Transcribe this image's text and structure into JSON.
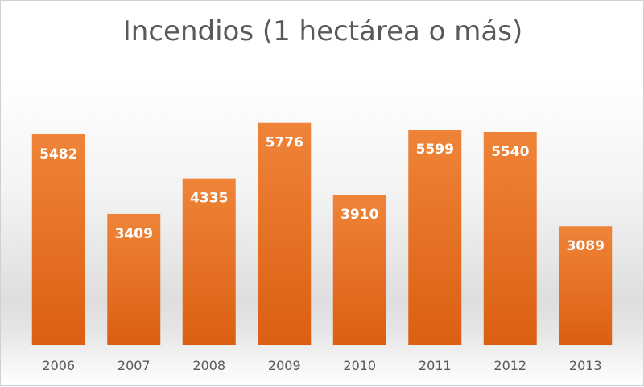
{
  "chart_data": {
    "type": "bar",
    "title": "Incendios (1 hectárea o más)",
    "categories": [
      "2006",
      "2007",
      "2008",
      "2009",
      "2010",
      "2011",
      "2012",
      "2013"
    ],
    "values": [
      5482,
      3409,
      4335,
      5776,
      3910,
      5599,
      5540,
      3089
    ],
    "xlabel": "",
    "ylabel": "",
    "ylim": [
      0,
      6000
    ],
    "grid": false,
    "legend": "none",
    "data_labels": "inside-top",
    "colors": {
      "bar_top": "#EF8438",
      "bar_bottom": "#DB5F12",
      "label": "#ffffff",
      "tick": "#595959"
    }
  }
}
